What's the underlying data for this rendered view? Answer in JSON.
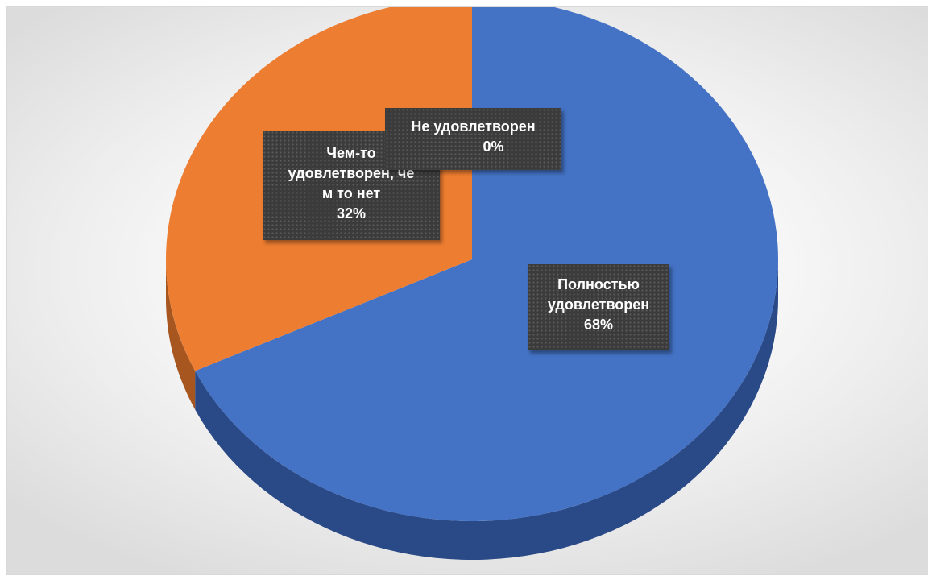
{
  "chart_data": {
    "type": "pie",
    "title": "",
    "slices": [
      {
        "label": "Полностью удовлетворен",
        "label_lines": [
          "Полностью",
          "удовлетворен"
        ],
        "percent_label": "68%",
        "value": 68,
        "color": "#4472C4",
        "side_color": "#2A4A87"
      },
      {
        "label": "Чем-то удовлетворен, чем то нет",
        "label_lines": [
          "Чем-то",
          "удовлетворен, че",
          "м то нет"
        ],
        "percent_label": "32%",
        "value": 32,
        "color": "#ED7D31",
        "side_color": "#A8561F"
      },
      {
        "label": "Не удовлетворен",
        "label_lines": [
          "Не удовлетворен"
        ],
        "percent_label": "0%",
        "value": 0,
        "color": "#A5A5A5",
        "side_color": "#6E6E6E"
      }
    ],
    "legend": "none",
    "style": "3d-pie"
  }
}
